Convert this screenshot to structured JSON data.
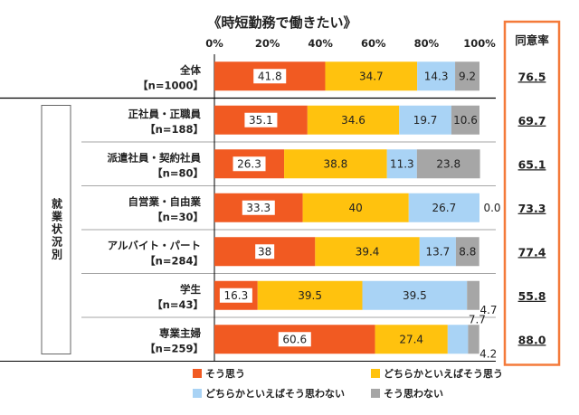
{
  "chart_data": {
    "type": "bar",
    "orientation": "horizontal",
    "stacked": true,
    "title": "《時短勤務で働きたい》",
    "xlim": [
      0,
      100
    ],
    "x_ticks": [
      "0%",
      "20%",
      "40%",
      "60%",
      "80%",
      "100%"
    ],
    "grid": false,
    "group_label": "就業状況別",
    "categories": [
      {
        "name": "全体",
        "n": "【n=1000】"
      },
      {
        "name": "正社員・正職員",
        "n": "【n=188】"
      },
      {
        "name": "派遣社員・契約社員",
        "n": "【n=80】"
      },
      {
        "name": "自営業・自由業",
        "n": "【n=30】"
      },
      {
        "name": "アルバイト・パート",
        "n": "【n=284】"
      },
      {
        "name": "学生",
        "n": "【n=43】"
      },
      {
        "name": "専業主婦",
        "n": "【n=259】"
      }
    ],
    "series": [
      {
        "name": "そう思う",
        "color": "#F15A22",
        "values": [
          41.8,
          35.1,
          26.3,
          33.3,
          38,
          16.3,
          60.6
        ],
        "labels": [
          "41.8",
          "35.1",
          "26.3",
          "33.3",
          "38",
          "16.3",
          "60.6"
        ]
      },
      {
        "name": "どちらかといえばそう思う",
        "color": "#FFC20E",
        "values": [
          34.7,
          34.6,
          38.8,
          40,
          39.4,
          39.5,
          27.4
        ],
        "labels": [
          "34.7",
          "34.6",
          "38.8",
          "40",
          "39.4",
          "39.5",
          "27.4"
        ]
      },
      {
        "name": "どちらかといえばそう思わない",
        "color": "#A9D3F5",
        "values": [
          14.3,
          19.7,
          11.3,
          26.7,
          13.7,
          39.5,
          7.7
        ],
        "labels": [
          "14.3",
          "19.7",
          "11.3",
          "26.7",
          "13.7",
          "39.5",
          "7.7"
        ]
      },
      {
        "name": "そう思わない",
        "color": "#A6A6A6",
        "values": [
          9.2,
          10.6,
          23.8,
          0.0,
          8.8,
          4.7,
          4.2
        ],
        "labels": [
          "9.2",
          "10.6",
          "23.8",
          "0.0",
          "8.8",
          "4.7",
          "4.2"
        ]
      }
    ],
    "agree_rate": {
      "header": "同意率",
      "values": [
        "76.5",
        "69.7",
        "65.1",
        "73.3",
        "77.4",
        "55.8",
        "88.0"
      ],
      "color": "#F47A3A"
    },
    "legend": "bottom"
  }
}
